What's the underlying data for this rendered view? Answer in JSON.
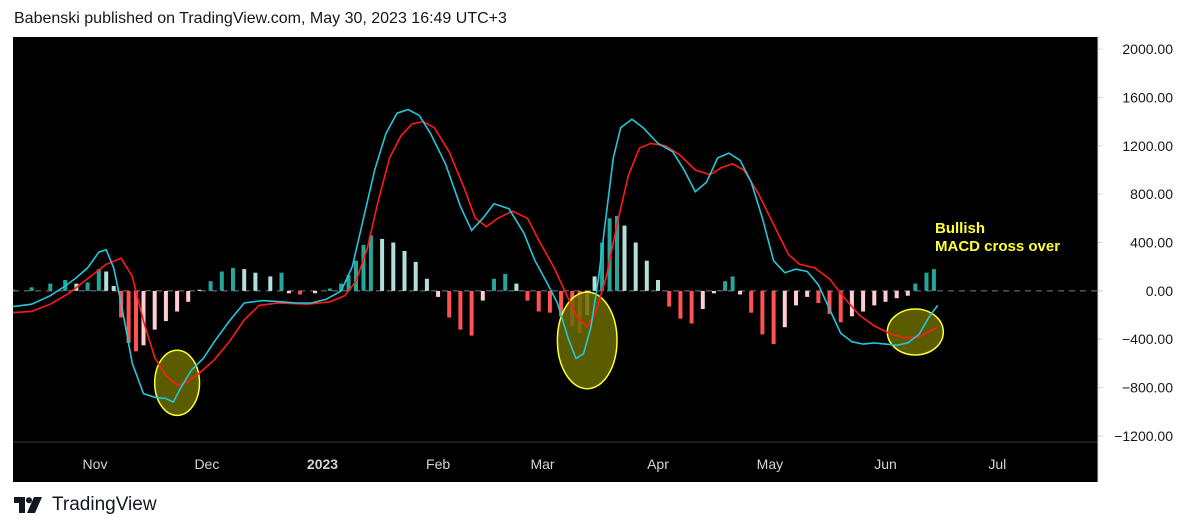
{
  "header": {
    "published_text": "Babenski published on TradingView.com, May 30, 2023 16:49 UTC+3"
  },
  "footer": {
    "brand": "TradingView",
    "logo_icon": "tradingview-logo-icon"
  },
  "annotation": {
    "line1": "Bullish",
    "line2": "MACD cross over",
    "color": "#ffff33"
  },
  "colors": {
    "background": "#000000",
    "macd_line": "#26c6da",
    "signal_line": "#ff1a1a",
    "hist_pos_strong": "#26a69a",
    "hist_pos_weak": "#b2dfdb",
    "hist_neg_strong": "#ff5252",
    "hist_neg_weak": "#ffcdd2",
    "highlight_fill": "#6b6b00",
    "highlight_stroke": "#ffff33"
  },
  "chart_data": {
    "type": "line",
    "indicator": "MACD",
    "x_range": [
      "2022-10-10",
      "2023-07-28"
    ],
    "ylim": [
      -1250,
      2100
    ],
    "y_ticks": [
      "2000.00",
      "1600.00",
      "1200.00",
      "800.00",
      "400.00",
      "0.00",
      "−400.00",
      "−800.00",
      "−1200.00"
    ],
    "x_ticks": [
      {
        "label": "Nov",
        "date": "2022-11-01",
        "bold": false
      },
      {
        "label": "Dec",
        "date": "2022-12-01",
        "bold": false
      },
      {
        "label": "2023",
        "date": "2023-01-01",
        "bold": true
      },
      {
        "label": "Feb",
        "date": "2023-02-01",
        "bold": false
      },
      {
        "label": "Mar",
        "date": "2023-03-01",
        "bold": false
      },
      {
        "label": "Apr",
        "date": "2023-04-01",
        "bold": false
      },
      {
        "label": "May",
        "date": "2023-05-01",
        "bold": false
      },
      {
        "label": "Jun",
        "date": "2023-06-01",
        "bold": false
      },
      {
        "label": "Jul",
        "date": "2023-07-01",
        "bold": false
      }
    ],
    "zero_line": "dashed",
    "grid": false,
    "macd": [
      [
        "2022-10-10",
        -130
      ],
      [
        "2022-10-15",
        -110
      ],
      [
        "2022-10-20",
        -40
      ],
      [
        "2022-10-24",
        40
      ],
      [
        "2022-10-27",
        110
      ],
      [
        "2022-10-30",
        190
      ],
      [
        "2022-11-02",
        320
      ],
      [
        "2022-11-04",
        340
      ],
      [
        "2022-11-06",
        190
      ],
      [
        "2022-11-08",
        -100
      ],
      [
        "2022-11-11",
        -600
      ],
      [
        "2022-11-14",
        -850
      ],
      [
        "2022-11-17",
        -880
      ],
      [
        "2022-11-20",
        -890
      ],
      [
        "2022-11-22",
        -920
      ],
      [
        "2022-11-24",
        -800
      ],
      [
        "2022-11-27",
        -650
      ],
      [
        "2022-11-30",
        -560
      ],
      [
        "2022-12-03",
        -420
      ],
      [
        "2022-12-07",
        -250
      ],
      [
        "2022-12-11",
        -100
      ],
      [
        "2022-12-16",
        -80
      ],
      [
        "2022-12-21",
        -90
      ],
      [
        "2022-12-25",
        -100
      ],
      [
        "2022-12-29",
        -100
      ],
      [
        "2023-01-02",
        -70
      ],
      [
        "2023-01-06",
        0
      ],
      [
        "2023-01-09",
        200
      ],
      [
        "2023-01-12",
        600
      ],
      [
        "2023-01-15",
        1000
      ],
      [
        "2023-01-18",
        1300
      ],
      [
        "2023-01-21",
        1470
      ],
      [
        "2023-01-24",
        1500
      ],
      [
        "2023-01-27",
        1450
      ],
      [
        "2023-01-30",
        1300
      ],
      [
        "2023-02-03",
        1050
      ],
      [
        "2023-02-07",
        700
      ],
      [
        "2023-02-10",
        500
      ],
      [
        "2023-02-13",
        600
      ],
      [
        "2023-02-16",
        720
      ],
      [
        "2023-02-20",
        680
      ],
      [
        "2023-02-24",
        480
      ],
      [
        "2023-02-27",
        250
      ],
      [
        "2023-03-02",
        80
      ],
      [
        "2023-03-05",
        -100
      ],
      [
        "2023-03-08",
        -400
      ],
      [
        "2023-03-10",
        -560
      ],
      [
        "2023-03-12",
        -520
      ],
      [
        "2023-03-14",
        -300
      ],
      [
        "2023-03-16",
        100
      ],
      [
        "2023-03-18",
        600
      ],
      [
        "2023-03-20",
        1100
      ],
      [
        "2023-03-22",
        1350
      ],
      [
        "2023-03-25",
        1420
      ],
      [
        "2023-03-28",
        1350
      ],
      [
        "2023-04-01",
        1220
      ],
      [
        "2023-04-05",
        1150
      ],
      [
        "2023-04-08",
        1000
      ],
      [
        "2023-04-11",
        820
      ],
      [
        "2023-04-14",
        900
      ],
      [
        "2023-04-17",
        1100
      ],
      [
        "2023-04-20",
        1140
      ],
      [
        "2023-04-23",
        1080
      ],
      [
        "2023-04-26",
        900
      ],
      [
        "2023-04-29",
        600
      ],
      [
        "2023-05-02",
        250
      ],
      [
        "2023-05-05",
        150
      ],
      [
        "2023-05-08",
        180
      ],
      [
        "2023-05-11",
        160
      ],
      [
        "2023-05-14",
        50
      ],
      [
        "2023-05-17",
        -150
      ],
      [
        "2023-05-20",
        -350
      ],
      [
        "2023-05-23",
        -420
      ],
      [
        "2023-05-26",
        -440
      ],
      [
        "2023-05-29",
        -430
      ],
      [
        "2023-06-01",
        -440
      ],
      [
        "2023-06-04",
        -450
      ],
      [
        "2023-06-07",
        -430
      ],
      [
        "2023-06-10",
        -360
      ],
      [
        "2023-06-13",
        -200
      ],
      [
        "2023-06-15",
        -120
      ]
    ],
    "signal": [
      [
        "2022-10-10",
        -180
      ],
      [
        "2022-10-15",
        -170
      ],
      [
        "2022-10-20",
        -110
      ],
      [
        "2022-10-25",
        -20
      ],
      [
        "2022-10-30",
        100
      ],
      [
        "2022-11-04",
        220
      ],
      [
        "2022-11-08",
        270
      ],
      [
        "2022-11-11",
        120
      ],
      [
        "2022-11-14",
        -250
      ],
      [
        "2022-11-17",
        -550
      ],
      [
        "2022-11-20",
        -700
      ],
      [
        "2022-11-23",
        -780
      ],
      [
        "2022-11-26",
        -750
      ],
      [
        "2022-11-29",
        -680
      ],
      [
        "2022-12-03",
        -570
      ],
      [
        "2022-12-07",
        -420
      ],
      [
        "2022-12-11",
        -240
      ],
      [
        "2022-12-15",
        -120
      ],
      [
        "2022-12-20",
        -100
      ],
      [
        "2022-12-28",
        -110
      ],
      [
        "2023-01-03",
        -90
      ],
      [
        "2023-01-07",
        -40
      ],
      [
        "2023-01-10",
        80
      ],
      [
        "2023-01-13",
        350
      ],
      [
        "2023-01-16",
        750
      ],
      [
        "2023-01-19",
        1100
      ],
      [
        "2023-01-22",
        1280
      ],
      [
        "2023-01-25",
        1380
      ],
      [
        "2023-01-28",
        1400
      ],
      [
        "2023-01-31",
        1350
      ],
      [
        "2023-02-04",
        1150
      ],
      [
        "2023-02-08",
        850
      ],
      [
        "2023-02-11",
        600
      ],
      [
        "2023-02-14",
        530
      ],
      [
        "2023-02-17",
        600
      ],
      [
        "2023-02-21",
        660
      ],
      [
        "2023-02-25",
        600
      ],
      [
        "2023-02-28",
        420
      ],
      [
        "2023-03-04",
        200
      ],
      [
        "2023-03-07",
        0
      ],
      [
        "2023-03-10",
        -200
      ],
      [
        "2023-03-13",
        -300
      ],
      [
        "2023-03-15",
        -200
      ],
      [
        "2023-03-18",
        100
      ],
      [
        "2023-03-21",
        550
      ],
      [
        "2023-03-24",
        950
      ],
      [
        "2023-03-27",
        1180
      ],
      [
        "2023-03-30",
        1220
      ],
      [
        "2023-04-03",
        1200
      ],
      [
        "2023-04-07",
        1120
      ],
      [
        "2023-04-11",
        1000
      ],
      [
        "2023-04-15",
        960
      ],
      [
        "2023-04-18",
        1020
      ],
      [
        "2023-04-21",
        1050
      ],
      [
        "2023-04-24",
        1000
      ],
      [
        "2023-04-28",
        800
      ],
      [
        "2023-05-02",
        550
      ],
      [
        "2023-05-06",
        300
      ],
      [
        "2023-05-09",
        220
      ],
      [
        "2023-05-13",
        190
      ],
      [
        "2023-05-17",
        100
      ],
      [
        "2023-05-21",
        -60
      ],
      [
        "2023-05-25",
        -200
      ],
      [
        "2023-05-29",
        -290
      ],
      [
        "2023-06-02",
        -350
      ],
      [
        "2023-06-06",
        -390
      ],
      [
        "2023-06-10",
        -380
      ],
      [
        "2023-06-13",
        -330
      ],
      [
        "2023-06-15",
        -300
      ]
    ],
    "histogram": [
      [
        "2022-10-10",
        10
      ],
      [
        "2022-10-15",
        30
      ],
      [
        "2022-10-20",
        60
      ],
      [
        "2022-10-24",
        90
      ],
      [
        "2022-10-27",
        60
      ],
      [
        "2022-10-30",
        70
      ],
      [
        "2022-11-02",
        180
      ],
      [
        "2022-11-04",
        160
      ],
      [
        "2022-11-06",
        40
      ],
      [
        "2022-11-08",
        -220
      ],
      [
        "2022-11-10",
        -430
      ],
      [
        "2022-11-12",
        -500
      ],
      [
        "2022-11-14",
        -450
      ],
      [
        "2022-11-17",
        -320
      ],
      [
        "2022-11-20",
        -250
      ],
      [
        "2022-11-23",
        -170
      ],
      [
        "2022-11-26",
        -90
      ],
      [
        "2022-11-29",
        10
      ],
      [
        "2022-12-02",
        80
      ],
      [
        "2022-12-05",
        160
      ],
      [
        "2022-12-08",
        190
      ],
      [
        "2022-12-11",
        180
      ],
      [
        "2022-12-14",
        150
      ],
      [
        "2022-12-18",
        120
      ],
      [
        "2022-12-21",
        150
      ],
      [
        "2022-12-23",
        -20
      ],
      [
        "2022-12-26",
        -30
      ],
      [
        "2022-12-30",
        -20
      ],
      [
        "2023-01-03",
        20
      ],
      [
        "2023-01-06",
        60
      ],
      [
        "2023-01-08",
        130
      ],
      [
        "2023-01-10",
        250
      ],
      [
        "2023-01-12",
        380
      ],
      [
        "2023-01-14",
        460
      ],
      [
        "2023-01-17",
        430
      ],
      [
        "2023-01-20",
        400
      ],
      [
        "2023-01-23",
        330
      ],
      [
        "2023-01-26",
        240
      ],
      [
        "2023-01-29",
        100
      ],
      [
        "2023-02-01",
        -50
      ],
      [
        "2023-02-04",
        -220
      ],
      [
        "2023-02-07",
        -320
      ],
      [
        "2023-02-10",
        -370
      ],
      [
        "2023-02-13",
        -80
      ],
      [
        "2023-02-16",
        100
      ],
      [
        "2023-02-19",
        140
      ],
      [
        "2023-02-22",
        60
      ],
      [
        "2023-02-25",
        -80
      ],
      [
        "2023-02-28",
        -170
      ],
      [
        "2023-03-03",
        -180
      ],
      [
        "2023-03-06",
        -210
      ],
      [
        "2023-03-09",
        -290
      ],
      [
        "2023-03-11",
        -350
      ],
      [
        "2023-03-13",
        -200
      ],
      [
        "2023-03-15",
        120
      ],
      [
        "2023-03-17",
        400
      ],
      [
        "2023-03-19",
        600
      ],
      [
        "2023-03-21",
        620
      ],
      [
        "2023-03-23",
        540
      ],
      [
        "2023-03-26",
        400
      ],
      [
        "2023-03-29",
        250
      ],
      [
        "2023-04-01",
        90
      ],
      [
        "2023-04-04",
        -130
      ],
      [
        "2023-04-07",
        -230
      ],
      [
        "2023-04-10",
        -270
      ],
      [
        "2023-04-13",
        -150
      ],
      [
        "2023-04-16",
        -20
      ],
      [
        "2023-04-19",
        80
      ],
      [
        "2023-04-21",
        120
      ],
      [
        "2023-04-23",
        -30
      ],
      [
        "2023-04-26",
        -180
      ],
      [
        "2023-04-29",
        -360
      ],
      [
        "2023-05-02",
        -440
      ],
      [
        "2023-05-05",
        -300
      ],
      [
        "2023-05-08",
        -120
      ],
      [
        "2023-05-11",
        -50
      ],
      [
        "2023-05-14",
        -100
      ],
      [
        "2023-05-17",
        -190
      ],
      [
        "2023-05-20",
        -260
      ],
      [
        "2023-05-23",
        -210
      ],
      [
        "2023-05-26",
        -170
      ],
      [
        "2023-05-29",
        -120
      ],
      [
        "2023-06-01",
        -90
      ],
      [
        "2023-06-04",
        -60
      ],
      [
        "2023-06-07",
        -40
      ],
      [
        "2023-06-09",
        60
      ],
      [
        "2023-06-12",
        150
      ],
      [
        "2023-06-14",
        180
      ]
    ],
    "highlights": [
      {
        "date": "2022-11-23",
        "y": -760,
        "rx_days": 6,
        "ry": 270
      },
      {
        "date": "2023-03-13",
        "y": -410,
        "rx_days": 8,
        "ry": 400
      },
      {
        "date": "2023-06-09",
        "y": -340,
        "rx_days": 7.5,
        "ry": 190
      }
    ]
  }
}
